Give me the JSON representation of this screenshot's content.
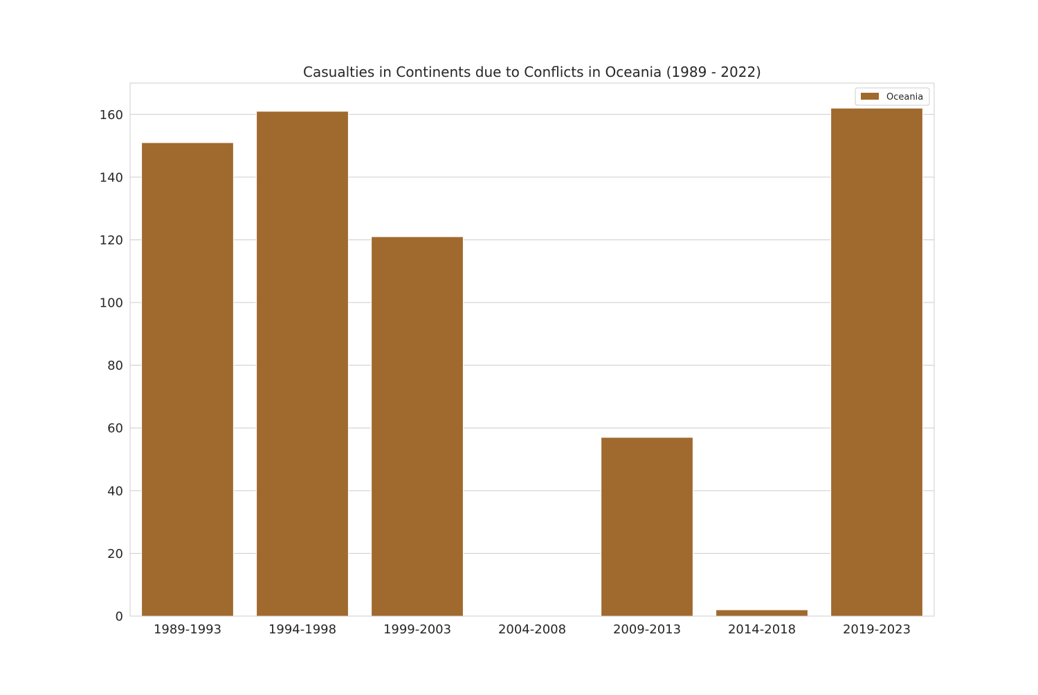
{
  "chart_data": {
    "type": "bar",
    "title": "Casualties in Continents due to Conflicts in Oceania (1989 - 2022)",
    "xlabel": "",
    "ylabel": "",
    "categories": [
      "1989-1993",
      "1994-1998",
      "1999-2003",
      "2004-2008",
      "2009-2013",
      "2014-2018",
      "2019-2023"
    ],
    "series": [
      {
        "name": "Oceania",
        "values": [
          151,
          161,
          121,
          0,
          57,
          2,
          162
        ],
        "color": "#a0692e"
      }
    ],
    "ylim": [
      0,
      170
    ],
    "yticks": [
      0,
      20,
      40,
      60,
      80,
      100,
      120,
      140,
      160
    ],
    "grid": true,
    "legend_position": "top-right"
  }
}
